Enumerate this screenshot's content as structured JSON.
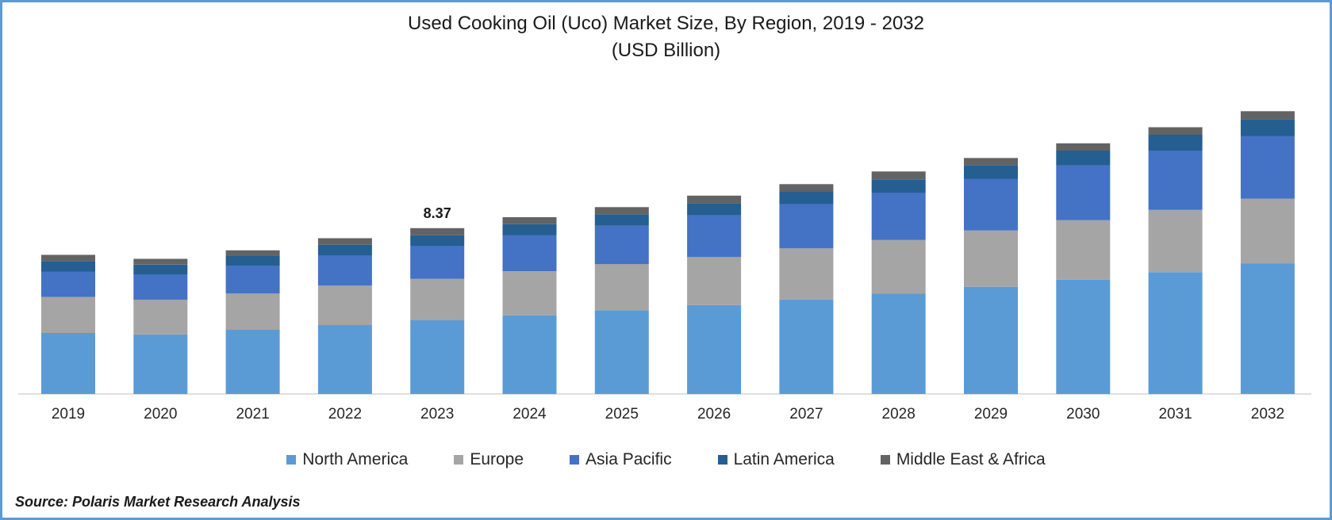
{
  "header": {
    "title_line1": "Used Cooking Oil (Uco) Market Size, By Region, 2019 - 2032",
    "title_line2": "(USD Billion)"
  },
  "source": "Source: Polaris Market Research Analysis",
  "chart_data": {
    "type": "bar",
    "stacked": true,
    "title": "Used Cooking Oil (Uco) Market Size, By Region, 2019 - 2032",
    "subtitle": "(USD Billion)",
    "categories": [
      "2019",
      "2020",
      "2021",
      "2022",
      "2023",
      "2024",
      "2025",
      "2026",
      "2027",
      "2028",
      "2029",
      "2030",
      "2031",
      "2032"
    ],
    "series": [
      {
        "name": "North America",
        "color": "#5b9bd5",
        "values": [
          3.08,
          3.01,
          3.24,
          3.48,
          3.72,
          3.97,
          4.23,
          4.49,
          4.77,
          5.06,
          5.41,
          5.77,
          6.15,
          6.58
        ]
      },
      {
        "name": "Europe",
        "color": "#a5a5a5",
        "values": [
          1.82,
          1.75,
          1.83,
          1.99,
          2.09,
          2.23,
          2.33,
          2.43,
          2.58,
          2.71,
          2.84,
          3.0,
          3.14,
          3.28
        ]
      },
      {
        "name": "Asia Pacific",
        "color": "#4472c4",
        "values": [
          1.28,
          1.28,
          1.41,
          1.53,
          1.67,
          1.82,
          1.93,
          2.09,
          2.22,
          2.39,
          2.61,
          2.76,
          2.99,
          3.16
        ]
      },
      {
        "name": "Latin America",
        "color": "#255e91",
        "values": [
          0.53,
          0.49,
          0.48,
          0.53,
          0.53,
          0.55,
          0.58,
          0.62,
          0.63,
          0.67,
          0.69,
          0.75,
          0.8,
          0.85
        ]
      },
      {
        "name": "Middle East & Africa",
        "color": "#636363",
        "values": [
          0.31,
          0.29,
          0.29,
          0.33,
          0.36,
          0.35,
          0.36,
          0.38,
          0.39,
          0.4,
          0.36,
          0.37,
          0.38,
          0.4
        ]
      }
    ],
    "data_labels": [
      {
        "category": "2023",
        "text": "8.37"
      }
    ],
    "ylim": [
      0,
      14.5
    ],
    "grid": false,
    "legend_position": "bottom"
  }
}
